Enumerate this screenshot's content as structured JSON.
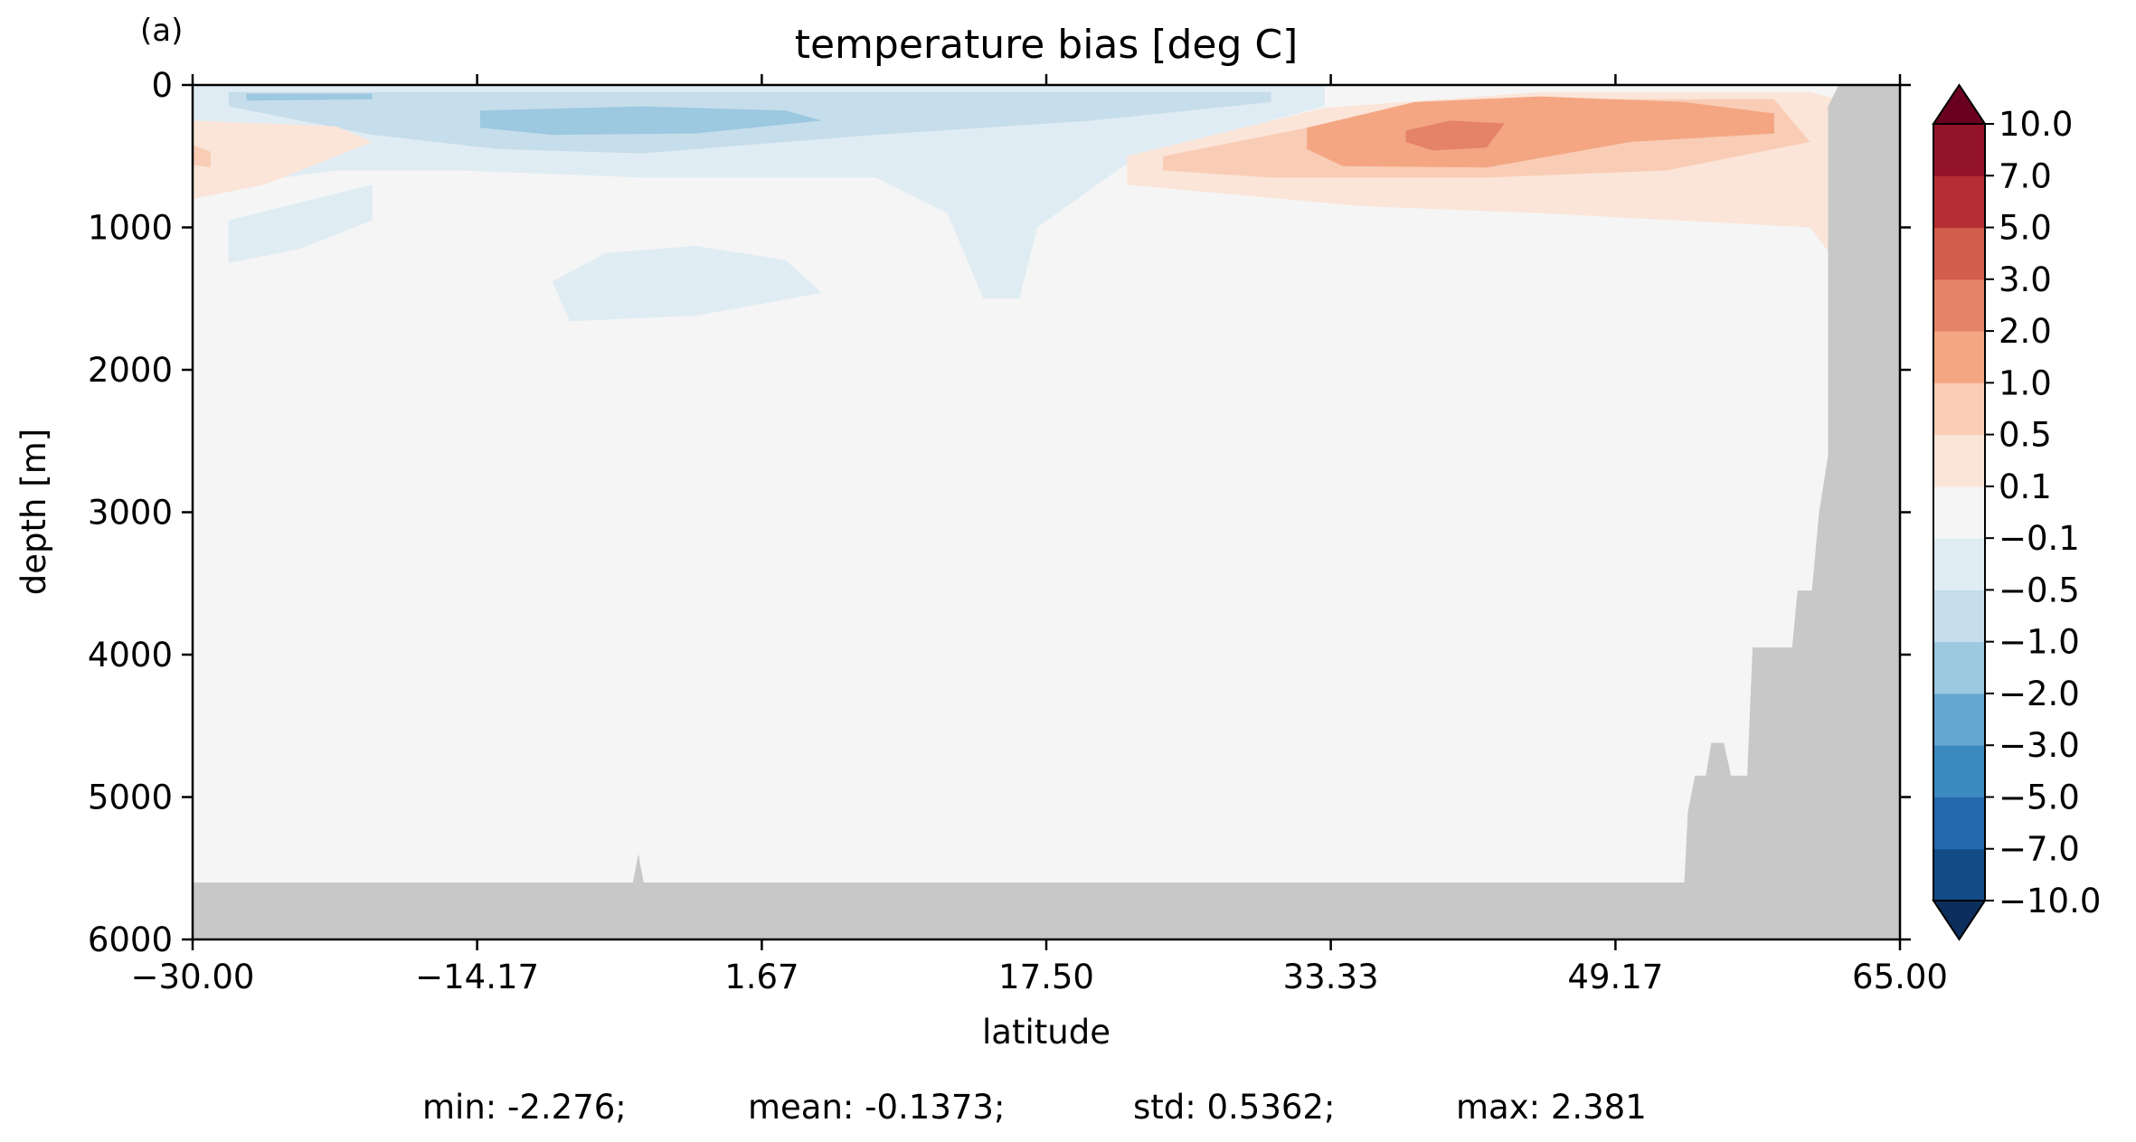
{
  "panel_label": "(a)",
  "title": "temperature bias [deg C]",
  "stats": {
    "min": "min: -2.276;",
    "mean": "mean: -0.1373;",
    "std": "std: 0.5362;",
    "max": "max: 2.381"
  },
  "chart_data": {
    "type": "heatmap",
    "title": "temperature bias [deg C]",
    "xlabel": "latitude",
    "ylabel": "depth [m]",
    "xlim": [
      -30,
      65
    ],
    "ylim": [
      6000,
      0
    ],
    "x_ticks": [
      -30,
      -14.17,
      1.67,
      17.5,
      33.33,
      49.17,
      65
    ],
    "x_tick_labels": [
      "−30.00",
      "−14.17",
      "1.67",
      "17.50",
      "33.33",
      "49.17",
      "65.00"
    ],
    "y_ticks": [
      0,
      1000,
      2000,
      3000,
      4000,
      5000,
      6000
    ],
    "y_tick_labels": [
      "0",
      "1000",
      "2000",
      "3000",
      "4000",
      "5000",
      "6000"
    ],
    "grid": false,
    "colormap": "RdBu_r",
    "colorbar": {
      "levels": [
        -10,
        -7,
        -5,
        -3,
        -2,
        -1,
        -0.5,
        -0.1,
        0.1,
        0.5,
        1,
        2,
        3,
        5,
        7,
        10
      ],
      "labels": [
        "−10.0",
        "−7.0",
        "−5.0",
        "−3.0",
        "−2.0",
        "−1.0",
        "−0.5",
        "−0.1",
        "0.1",
        "0.5",
        "1.0",
        "2.0",
        "3.0",
        "5.0",
        "7.0",
        "10.0"
      ],
      "colors": [
        "#0b2e5c",
        "#134b87",
        "#2468ad",
        "#3a89c0",
        "#64a7cf",
        "#9cc8e0",
        "#c6ddeb",
        "#e0ecf3",
        "#f5f5f5",
        "#fbe5d8",
        "#f9cdb5",
        "#f4a683",
        "#e5826a",
        "#d15d4d",
        "#b72d35",
        "#93132a",
        "#6b0120"
      ],
      "extend": "both"
    },
    "land_color": "#c8c8c8",
    "features": [
      {
        "sign": "negative",
        "level": "-2.0 to -1.0",
        "lat_range": [
          -14,
          -2
        ],
        "depth_range": [
          150,
          350
        ]
      },
      {
        "sign": "negative",
        "level": "-0.5 to -0.1",
        "lat_range": [
          -30,
          33
        ],
        "depth_range": [
          0,
          1700
        ]
      },
      {
        "sign": "positive",
        "level": "2.0 to 3.0",
        "lat_range": [
          38,
          42
        ],
        "depth_range": [
          300,
          450
        ]
      },
      {
        "sign": "positive",
        "level": "1.0 to 2.0",
        "lat_range": [
          33,
          63
        ],
        "depth_range": [
          100,
          600
        ]
      },
      {
        "sign": "positive",
        "level": "0.1 to 0.5",
        "lat_range": [
          27,
          63
        ],
        "depth_range": [
          0,
          1500
        ]
      }
    ]
  }
}
